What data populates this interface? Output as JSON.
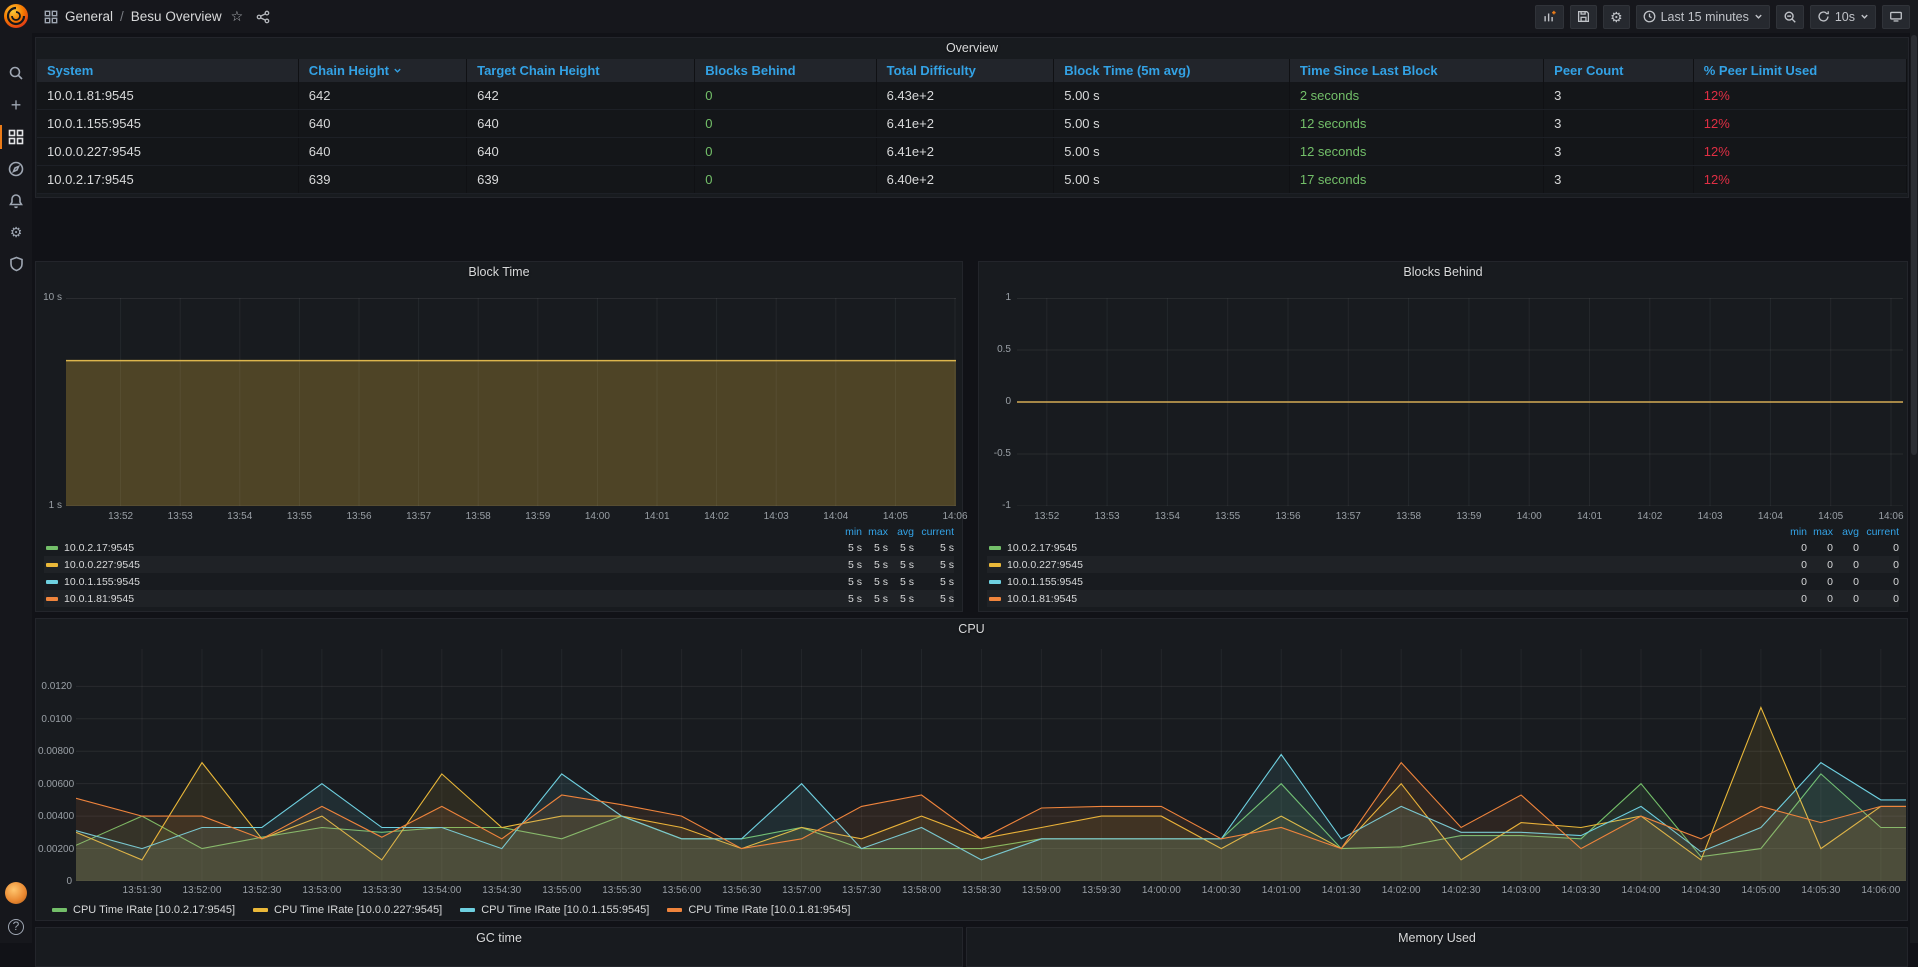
{
  "topbar": {
    "breadcrumb_section": "General",
    "breadcrumb_sep": "/",
    "breadcrumb_title": "Besu Overview",
    "time_range": "Last 15 minutes",
    "refresh": "10s"
  },
  "icons": {
    "star": "☆",
    "gear": "⚙",
    "plus": "+",
    "question": "?"
  },
  "overview_table": {
    "title": "Overview",
    "columns": [
      "System",
      "Chain Height",
      "Target Chain Height",
      "Blocks Behind",
      "Total Difficulty",
      "Block Time (5m avg)",
      "Time Since Last Block",
      "Peer Count",
      "% Peer Limit Used"
    ],
    "sorted_column_index": 1,
    "rows": [
      {
        "system": "10.0.1.81:9545",
        "chain_height": "642",
        "target_chain_height": "642",
        "blocks_behind": "0",
        "total_difficulty": "6.43e+2",
        "block_time": "5.00 s",
        "time_since_last_block": "2 seconds",
        "peer_count": "3",
        "peer_limit_used": "12%"
      },
      {
        "system": "10.0.1.155:9545",
        "chain_height": "640",
        "target_chain_height": "640",
        "blocks_behind": "0",
        "total_difficulty": "6.41e+2",
        "block_time": "5.00 s",
        "time_since_last_block": "12 seconds",
        "peer_count": "3",
        "peer_limit_used": "12%"
      },
      {
        "system": "10.0.0.227:9545",
        "chain_height": "640",
        "target_chain_height": "640",
        "blocks_behind": "0",
        "total_difficulty": "6.41e+2",
        "block_time": "5.00 s",
        "time_since_last_block": "12 seconds",
        "peer_count": "3",
        "peer_limit_used": "12%"
      },
      {
        "system": "10.0.2.17:9545",
        "chain_height": "639",
        "target_chain_height": "639",
        "blocks_behind": "0",
        "total_difficulty": "6.40e+2",
        "block_time": "5.00 s",
        "time_since_last_block": "17 seconds",
        "peer_count": "3",
        "peer_limit_used": "12%"
      }
    ]
  },
  "chart_data": {
    "block_time": {
      "type": "area",
      "title": "Block Time",
      "y_scale": "log",
      "ylim": [
        1,
        10
      ],
      "y_tick_top": "10 s",
      "y_tick_bottom": "1 s",
      "value_seconds": 5,
      "x_ticks": [
        "13:52",
        "13:53",
        "13:54",
        "13:55",
        "13:56",
        "13:57",
        "13:58",
        "13:59",
        "14:00",
        "14:01",
        "14:02",
        "14:03",
        "14:04",
        "14:05",
        "14:06"
      ],
      "legend_columns": [
        "min",
        "max",
        "avg",
        "current"
      ],
      "series": [
        {
          "name": "10.0.2.17:9545",
          "color": "#73bf69",
          "legend_values": [
            "5 s",
            "5 s",
            "5 s",
            "5 s"
          ]
        },
        {
          "name": "10.0.0.227:9545",
          "color": "#eab839",
          "legend_values": [
            "5 s",
            "5 s",
            "5 s",
            "5 s"
          ]
        },
        {
          "name": "10.0.1.155:9545",
          "color": "#6ed0e0",
          "legend_values": [
            "5 s",
            "5 s",
            "5 s",
            "5 s"
          ]
        },
        {
          "name": "10.0.1.81:9545",
          "color": "#ef843c",
          "legend_values": [
            "5 s",
            "5 s",
            "5 s",
            "5 s"
          ]
        }
      ]
    },
    "blocks_behind": {
      "type": "line",
      "title": "Blocks Behind",
      "y_scale": "linear",
      "ylim": [
        -1,
        1
      ],
      "y_ticks": [
        "1",
        "0.5",
        "0",
        "-0.5",
        "-1"
      ],
      "value": 0,
      "x_ticks": [
        "13:52",
        "13:53",
        "13:54",
        "13:55",
        "13:56",
        "13:57",
        "13:58",
        "13:59",
        "14:00",
        "14:01",
        "14:02",
        "14:03",
        "14:04",
        "14:05",
        "14:06"
      ],
      "legend_columns": [
        "min",
        "max",
        "avg",
        "current"
      ],
      "series": [
        {
          "name": "10.0.2.17:9545",
          "color": "#73bf69",
          "legend_values": [
            "0",
            "0",
            "0",
            "0"
          ]
        },
        {
          "name": "10.0.0.227:9545",
          "color": "#eab839",
          "legend_values": [
            "0",
            "0",
            "0",
            "0"
          ]
        },
        {
          "name": "10.0.1.155:9545",
          "color": "#6ed0e0",
          "legend_values": [
            "0",
            "0",
            "0",
            "0"
          ]
        },
        {
          "name": "10.0.1.81:9545",
          "color": "#ef843c",
          "legend_values": [
            "0",
            "0",
            "0",
            "0"
          ]
        }
      ]
    },
    "cpu": {
      "type": "line",
      "title": "CPU",
      "ylim": [
        0,
        0.0143
      ],
      "y_ticks": [
        "0.0120",
        "0.0100",
        "0.00800",
        "0.00600",
        "0.00400",
        "0.00200",
        "0"
      ],
      "y_tick_values": [
        0.012,
        0.01,
        0.008,
        0.006,
        0.004,
        0.002,
        0
      ],
      "x_ticks": [
        "13:51:30",
        "13:52:00",
        "13:52:30",
        "13:53:00",
        "13:53:30",
        "13:54:00",
        "13:54:30",
        "13:55:00",
        "13:55:30",
        "13:56:00",
        "13:56:30",
        "13:57:00",
        "13:57:30",
        "13:58:00",
        "13:58:30",
        "13:59:00",
        "13:59:30",
        "14:00:00",
        "14:00:30",
        "14:01:00",
        "14:01:30",
        "14:02:00",
        "14:02:30",
        "14:03:00",
        "14:03:30",
        "14:04:00",
        "14:04:30",
        "14:05:00",
        "14:05:30",
        "14:06:00"
      ],
      "series": [
        {
          "name": "10.0.2.17:9545",
          "legend_label": "CPU Time IRate [10.0.2.17:9545]",
          "color": "#73bf69",
          "values": [
            0.0022,
            0.004,
            0.002,
            0.0027,
            0.0033,
            0.003,
            0.0033,
            0.0033,
            0.0026,
            0.004,
            0.0026,
            0.0026,
            0.0033,
            0.002,
            0.002,
            0.002,
            0.0026,
            0.0026,
            0.0026,
            0.0026,
            0.006,
            0.002,
            0.0021,
            0.0028,
            0.0028,
            0.0026,
            0.006,
            0.0015,
            0.002,
            0.0066,
            0.0033
          ]
        },
        {
          "name": "10.0.0.227:9545",
          "legend_label": "CPU Time IRate [10.0.0.227:9545]",
          "color": "#eab839",
          "values": [
            0.003,
            0.0013,
            0.0073,
            0.0026,
            0.004,
            0.0013,
            0.0066,
            0.0033,
            0.004,
            0.004,
            0.0033,
            0.002,
            0.0033,
            0.0026,
            0.004,
            0.0026,
            0.0033,
            0.004,
            0.004,
            0.002,
            0.004,
            0.002,
            0.006,
            0.0013,
            0.0036,
            0.0033,
            0.004,
            0.0013,
            0.0107,
            0.002,
            0.0046
          ]
        },
        {
          "name": "10.0.1.155:9545",
          "legend_label": "CPU Time IRate [10.0.1.155:9545]",
          "color": "#6ed0e0",
          "values": [
            0.0031,
            0.002,
            0.0033,
            0.0033,
            0.006,
            0.0033,
            0.0033,
            0.002,
            0.0066,
            0.004,
            0.0026,
            0.0026,
            0.006,
            0.002,
            0.0033,
            0.0013,
            0.0026,
            0.0026,
            0.0026,
            0.0026,
            0.0078,
            0.0026,
            0.0046,
            0.003,
            0.003,
            0.0028,
            0.0046,
            0.0018,
            0.0033,
            0.0073,
            0.005
          ]
        },
        {
          "name": "10.0.1.81:9545",
          "legend_label": "CPU Time IRate [10.0.1.81:9545]",
          "color": "#ef843c",
          "values": [
            0.0051,
            0.004,
            0.004,
            0.0026,
            0.0046,
            0.0027,
            0.0046,
            0.0026,
            0.0053,
            0.0047,
            0.004,
            0.002,
            0.0026,
            0.0046,
            0.0053,
            0.0026,
            0.0045,
            0.0046,
            0.0046,
            0.0026,
            0.0033,
            0.002,
            0.0073,
            0.0033,
            0.0053,
            0.002,
            0.004,
            0.0026,
            0.0046,
            0.0036,
            0.0046
          ]
        }
      ]
    }
  },
  "bottom_panels": {
    "gc_time": "GC time",
    "memory_used": "Memory Used"
  }
}
